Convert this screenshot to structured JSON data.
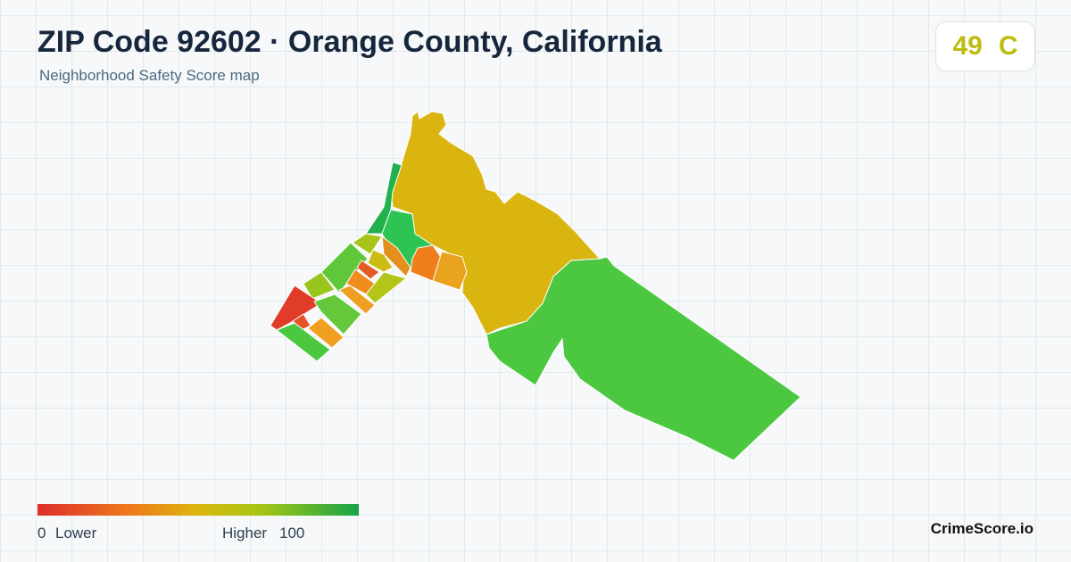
{
  "header": {
    "title": "ZIP Code 92602 · Orange County, California",
    "subtitle": "Neighborhood Safety Score map"
  },
  "score": {
    "value": "49",
    "grade": "C"
  },
  "legend": {
    "min": "0",
    "min_label": "Lower",
    "max_label": "Higher",
    "max": "100"
  },
  "brand": "CrimeScore.io"
}
